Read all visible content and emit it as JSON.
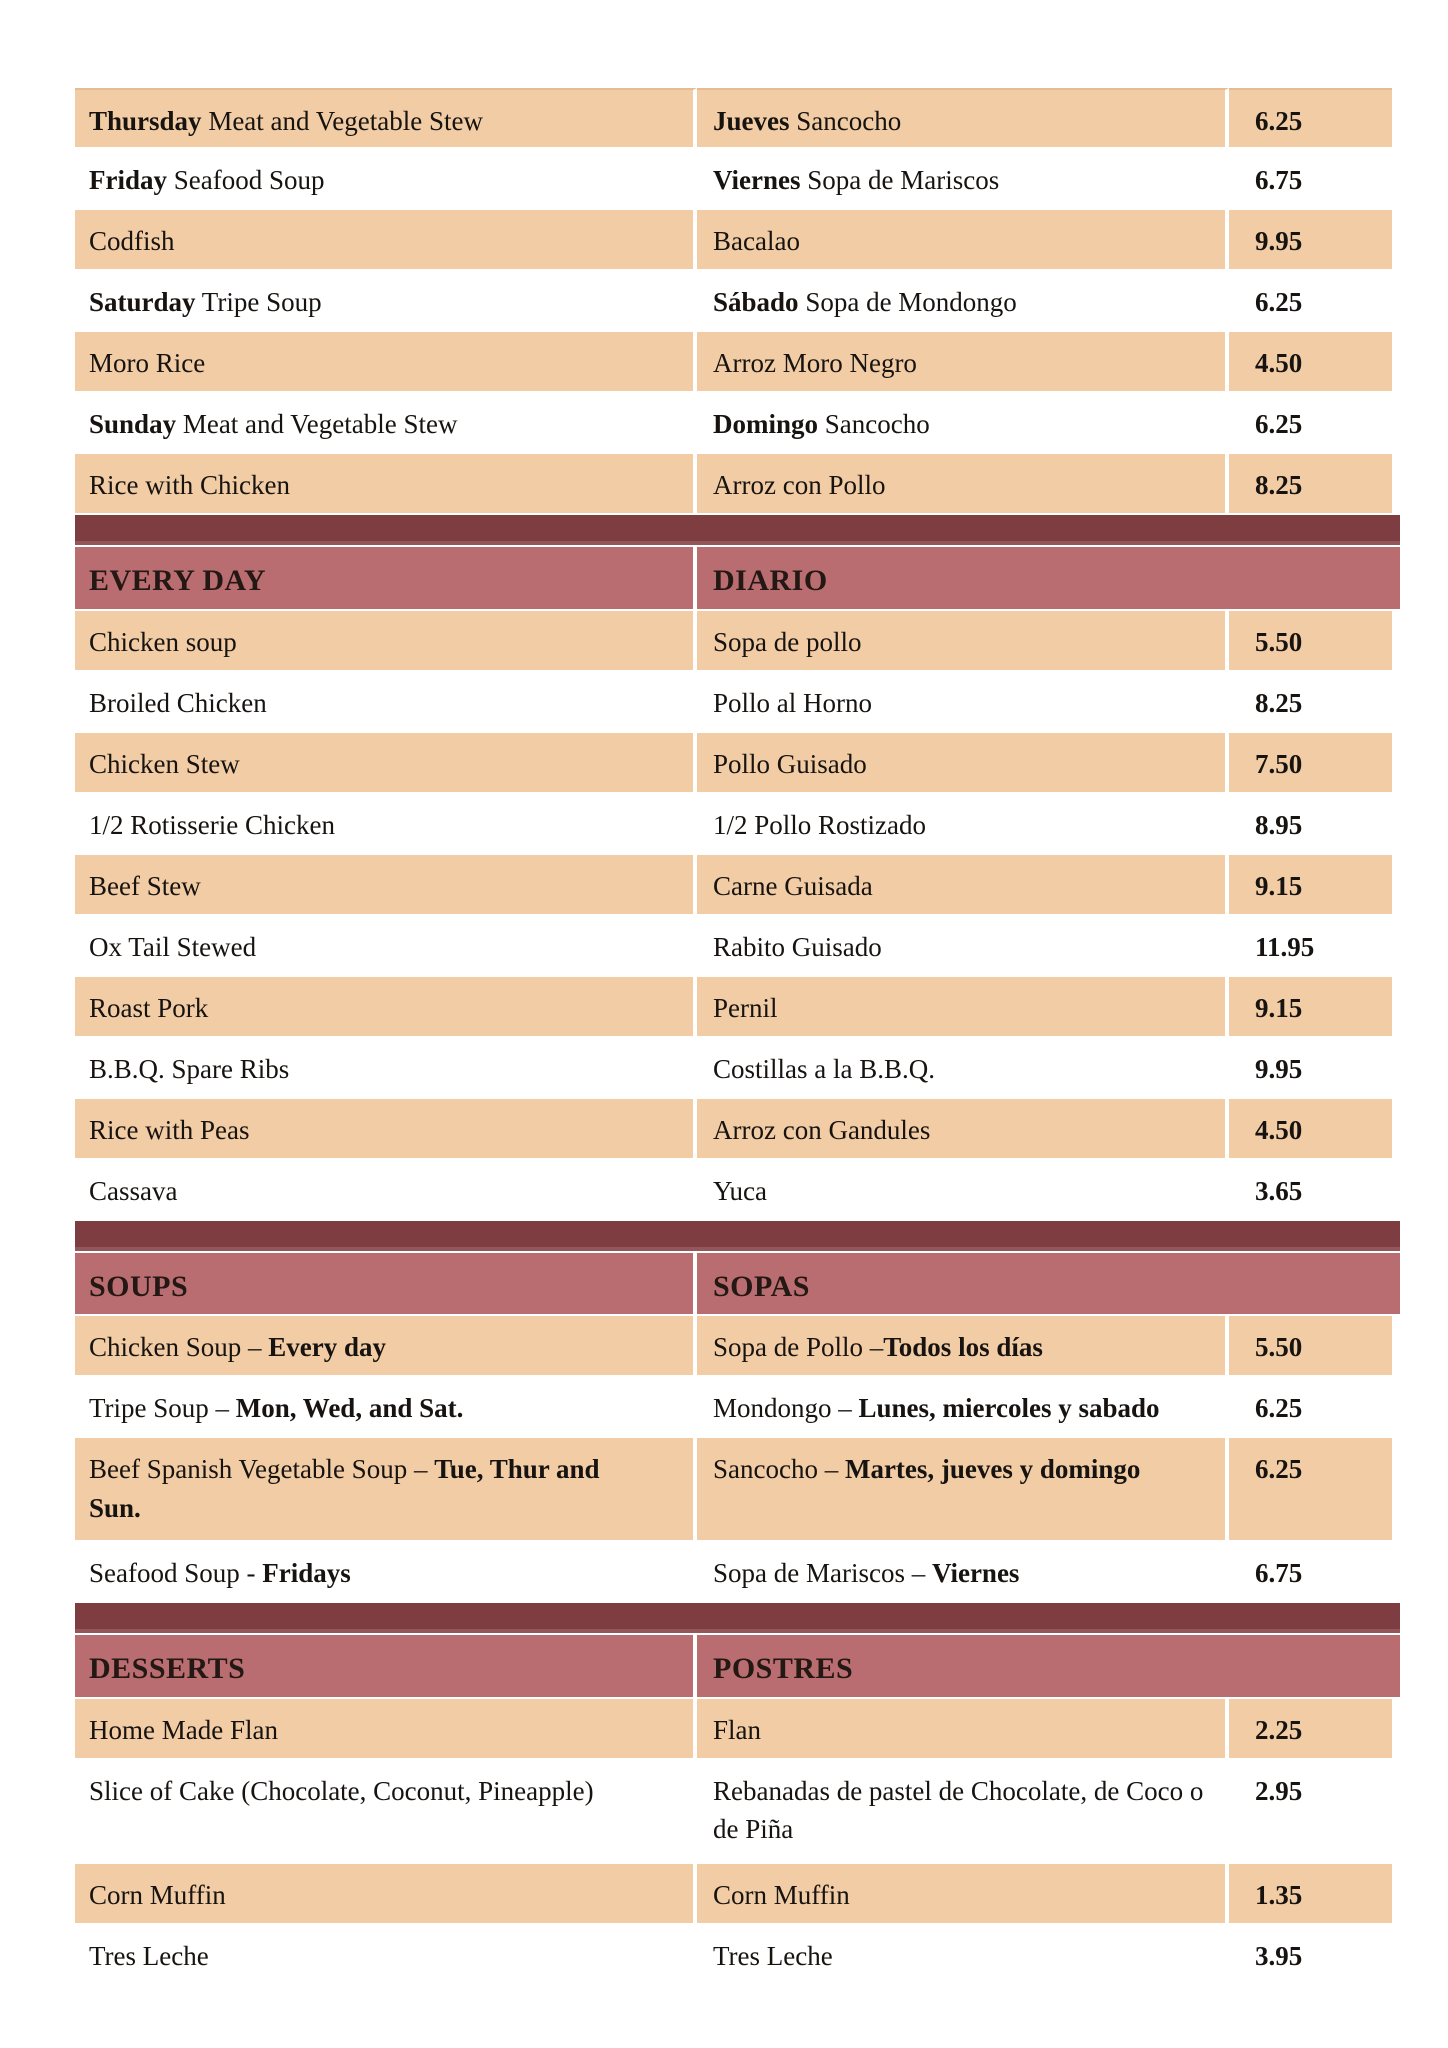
{
  "colors": {
    "row_shade": "#f1cca4",
    "row_plain": "#ffffff",
    "section_header_bg": "#b96d70",
    "section_divider_bg": "#7d3d41",
    "section_divider_edge": "#93575b",
    "text": "#171310",
    "header_text": "#241814"
  },
  "sections": [
    {
      "type": "rows",
      "name": "weekly-specials",
      "rows": [
        {
          "shade": true,
          "tall": false,
          "en": [
            {
              "t": "Thursday",
              "b": true
            },
            {
              "t": " Meat and Vegetable Stew",
              "b": false
            }
          ],
          "es": [
            {
              "t": "Jueves",
              "b": true
            },
            {
              "t": " Sancocho",
              "b": false
            }
          ],
          "price": "6.25"
        },
        {
          "shade": false,
          "tall": false,
          "en": [
            {
              "t": "Friday",
              "b": true
            },
            {
              "t": " Seafood Soup",
              "b": false
            }
          ],
          "es": [
            {
              "t": "Viernes",
              "b": true
            },
            {
              "t": " Sopa de Mariscos",
              "b": false
            }
          ],
          "price": "6.75"
        },
        {
          "shade": true,
          "tall": false,
          "en": [
            {
              "t": "Codfish",
              "b": false
            }
          ],
          "es": [
            {
              "t": "Bacalao",
              "b": false
            }
          ],
          "price": "9.95"
        },
        {
          "shade": false,
          "tall": false,
          "en": [
            {
              "t": "Saturday",
              "b": true
            },
            {
              "t": " Tripe Soup",
              "b": false
            }
          ],
          "es": [
            {
              "t": "Sábado",
              "b": true
            },
            {
              "t": " Sopa de Mondongo",
              "b": false
            }
          ],
          "price": "6.25"
        },
        {
          "shade": true,
          "tall": false,
          "en": [
            {
              "t": "Moro Rice",
              "b": false
            }
          ],
          "es": [
            {
              "t": "Arroz Moro Negro",
              "b": false
            }
          ],
          "price": "4.50"
        },
        {
          "shade": false,
          "tall": false,
          "en": [
            {
              "t": "Sunday",
              "b": true
            },
            {
              "t": " Meat and Vegetable Stew",
              "b": false
            }
          ],
          "es": [
            {
              "t": "Domingo",
              "b": true
            },
            {
              "t": " Sancocho",
              "b": false
            }
          ],
          "price": "6.25"
        },
        {
          "shade": true,
          "tall": false,
          "en": [
            {
              "t": "Rice with Chicken",
              "b": false
            }
          ],
          "es": [
            {
              "t": "Arroz con Pollo",
              "b": false
            }
          ],
          "price": "8.25"
        }
      ]
    },
    {
      "type": "divider"
    },
    {
      "type": "header",
      "en": "EVERY DAY",
      "es": "DIARIO"
    },
    {
      "type": "rows",
      "name": "every-day",
      "rows": [
        {
          "shade": true,
          "tall": false,
          "en": [
            {
              "t": "Chicken soup",
              "b": false
            }
          ],
          "es": [
            {
              "t": "Sopa de pollo",
              "b": false
            }
          ],
          "price": "5.50"
        },
        {
          "shade": false,
          "tall": false,
          "en": [
            {
              "t": "Broiled Chicken",
              "b": false
            }
          ],
          "es": [
            {
              "t": "Pollo al Horno",
              "b": false
            }
          ],
          "price": "8.25"
        },
        {
          "shade": true,
          "tall": false,
          "en": [
            {
              "t": "Chicken Stew",
              "b": false
            }
          ],
          "es": [
            {
              "t": "Pollo Guisado",
              "b": false
            }
          ],
          "price": "7.50"
        },
        {
          "shade": false,
          "tall": false,
          "en": [
            {
              "t": "1/2 Rotisserie Chicken",
              "b": false
            }
          ],
          "es": [
            {
              "t": "1/2 Pollo Rostizado",
              "b": false
            }
          ],
          "price": "8.95"
        },
        {
          "shade": true,
          "tall": false,
          "en": [
            {
              "t": "Beef Stew",
              "b": false
            }
          ],
          "es": [
            {
              "t": "Carne Guisada",
              "b": false
            }
          ],
          "price": "9.15"
        },
        {
          "shade": false,
          "tall": false,
          "en": [
            {
              "t": "Ox Tail Stewed",
              "b": false
            }
          ],
          "es": [
            {
              "t": "Rabito Guisado",
              "b": false
            }
          ],
          "price": "11.95"
        },
        {
          "shade": true,
          "tall": false,
          "en": [
            {
              "t": "Roast Pork",
              "b": false
            }
          ],
          "es": [
            {
              "t": "Pernil",
              "b": false
            }
          ],
          "price": "9.15"
        },
        {
          "shade": false,
          "tall": false,
          "en": [
            {
              "t": "B.B.Q. Spare Ribs",
              "b": false
            }
          ],
          "es": [
            {
              "t": "Costillas a la B.B.Q.",
              "b": false
            }
          ],
          "price": "9.95"
        },
        {
          "shade": true,
          "tall": false,
          "en": [
            {
              "t": "Rice with Peas",
              "b": false
            }
          ],
          "es": [
            {
              "t": "Arroz con Gandules",
              "b": false
            }
          ],
          "price": "4.50"
        },
        {
          "shade": false,
          "tall": false,
          "en": [
            {
              "t": "Cassava",
              "b": false
            }
          ],
          "es": [
            {
              "t": "Yuca",
              "b": false
            }
          ],
          "price": "3.65"
        }
      ]
    },
    {
      "type": "divider"
    },
    {
      "type": "header",
      "en": "SOUPS",
      "es": "SOPAS"
    },
    {
      "type": "rows",
      "name": "soups",
      "rows": [
        {
          "shade": true,
          "tall": false,
          "en": [
            {
              "t": "Chicken Soup – ",
              "b": false
            },
            {
              "t": "Every day",
              "b": true
            }
          ],
          "es": [
            {
              "t": "Sopa de Pollo –",
              "b": false
            },
            {
              "t": "Todos los días",
              "b": true
            }
          ],
          "price": "5.50"
        },
        {
          "shade": false,
          "tall": false,
          "en": [
            {
              "t": "Tripe Soup – ",
              "b": false
            },
            {
              "t": "Mon, Wed, and Sat.",
              "b": true
            }
          ],
          "es": [
            {
              "t": "Mondongo – ",
              "b": false
            },
            {
              "t": "Lunes, miercoles y sabado",
              "b": true
            }
          ],
          "price": "6.25"
        },
        {
          "shade": true,
          "tall": true,
          "en": [
            {
              "t": "Beef Spanish Vegetable Soup – ",
              "b": false
            },
            {
              "t": "Tue, Thur and Sun.",
              "b": true
            }
          ],
          "es": [
            {
              "t": "Sancocho – ",
              "b": false
            },
            {
              "t": "Martes, jueves y domingo",
              "b": true
            }
          ],
          "price": "6.25"
        },
        {
          "shade": false,
          "tall": false,
          "en": [
            {
              "t": "Seafood Soup - ",
              "b": false
            },
            {
              "t": "Fridays",
              "b": true
            }
          ],
          "es": [
            {
              "t": "Sopa de Mariscos – ",
              "b": false
            },
            {
              "t": "Viernes",
              "b": true
            }
          ],
          "price": "6.75"
        }
      ]
    },
    {
      "type": "divider"
    },
    {
      "type": "header",
      "en": "DESSERTS",
      "es": "POSTRES"
    },
    {
      "type": "rows",
      "name": "desserts",
      "rows": [
        {
          "shade": true,
          "tall": false,
          "en": [
            {
              "t": "Home Made Flan",
              "b": false
            }
          ],
          "es": [
            {
              "t": "Flan",
              "b": false
            }
          ],
          "price": "2.25"
        },
        {
          "shade": false,
          "tall": true,
          "en": [
            {
              "t": "Slice of Cake (Chocolate, Coconut, Pineapple)",
              "b": false
            }
          ],
          "es": [
            {
              "t": "Rebanadas de pastel de Chocolate, de Coco o de Piña",
              "b": false
            }
          ],
          "price": "2.95"
        },
        {
          "shade": true,
          "tall": false,
          "en": [
            {
              "t": "Corn Muffin",
              "b": false
            }
          ],
          "es": [
            {
              "t": "Corn Muffin",
              "b": false
            }
          ],
          "price": "1.35"
        },
        {
          "shade": false,
          "tall": false,
          "en": [
            {
              "t": "Tres Leche",
              "b": false
            }
          ],
          "es": [
            {
              "t": "Tres Leche",
              "b": false
            }
          ],
          "price": "3.95"
        }
      ]
    }
  ]
}
